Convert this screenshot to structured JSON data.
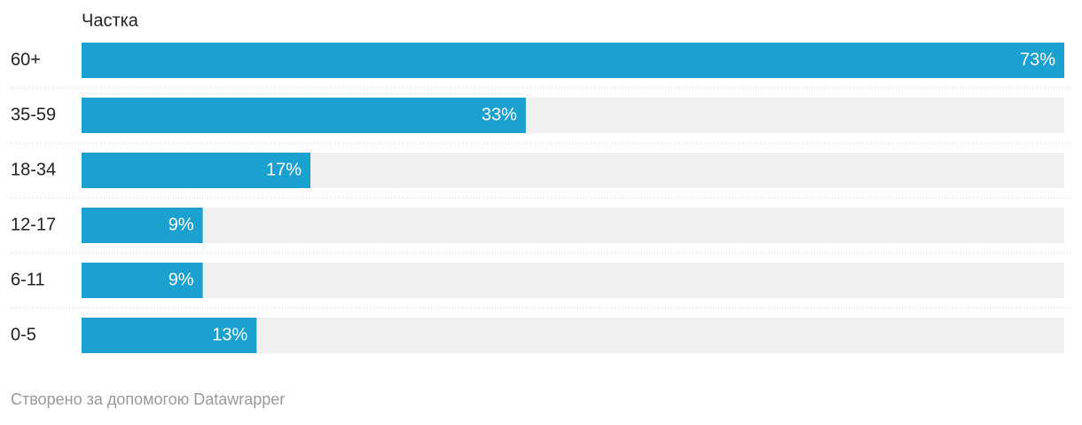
{
  "chart_data": {
    "type": "bar",
    "orientation": "horizontal",
    "column_header": "Частка",
    "categories": [
      "60+",
      "35-59",
      "18-34",
      "12-17",
      "6-11",
      "0-5"
    ],
    "values": [
      73,
      33,
      17,
      9,
      9,
      13
    ],
    "value_labels": [
      "73%",
      "33%",
      "17%",
      "9%",
      "9%",
      "13%"
    ],
    "color": "#1ba1cf",
    "xlim": [
      0,
      73
    ]
  },
  "footer": "Створено за допомогою Datawrapper"
}
